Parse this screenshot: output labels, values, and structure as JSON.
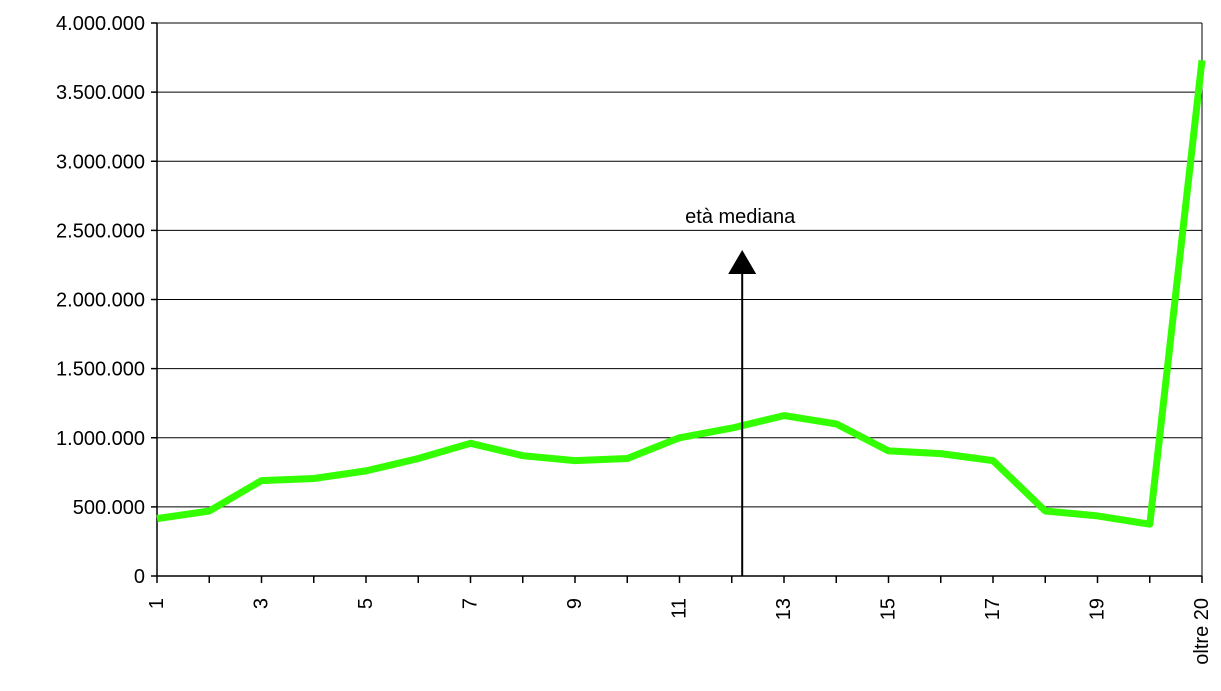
{
  "chart_data": {
    "type": "line",
    "categories": [
      "1",
      "2",
      "3",
      "4",
      "5",
      "6",
      "7",
      "8",
      "9",
      "10",
      "11",
      "12",
      "13",
      "14",
      "15",
      "16",
      "17",
      "18",
      "19",
      "20",
      "oltre 20"
    ],
    "x_tick_labels": [
      "1",
      "",
      "3",
      "",
      "5",
      "",
      "7",
      "",
      "9",
      "",
      "11",
      "",
      "13",
      "",
      "15",
      "",
      "17",
      "",
      "19",
      "",
      "oltre 20"
    ],
    "series": [
      {
        "values": [
          415000,
          470000,
          690000,
          705000,
          760000,
          850000,
          960000,
          870000,
          835000,
          850000,
          1000000,
          1070000,
          1160000,
          1100000,
          905000,
          885000,
          835000,
          470000,
          435000,
          375000,
          3730000
        ],
        "color": "#33ff00"
      }
    ],
    "y_ticks": [
      0,
      500000,
      1000000,
      1500000,
      2000000,
      2500000,
      3000000,
      3500000,
      4000000
    ],
    "y_tick_labels": [
      "0",
      "500.000",
      "1.000.000",
      "1.500.000",
      "2.000.000",
      "2.500.000",
      "3.000.000",
      "3.500.000",
      "4.000.000"
    ],
    "ylim": [
      0,
      4000000
    ],
    "grid": "horizontal",
    "annotation": {
      "text": "età mediana",
      "x_position": 12.2
    }
  }
}
